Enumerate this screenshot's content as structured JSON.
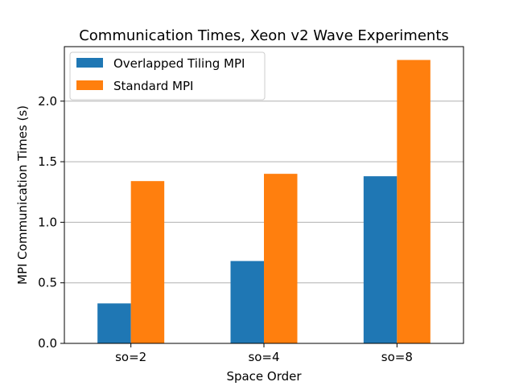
{
  "chart_data": {
    "type": "bar",
    "title": "Communication Times, Xeon v2 Wave Experiments",
    "xlabel": "Space Order",
    "ylabel": "MPI Communication Times (s)",
    "categories": [
      "so=2",
      "so=4",
      "so=8"
    ],
    "series": [
      {
        "name": "Overlapped Tiling MPI",
        "color": "#1f77b4",
        "values": [
          0.33,
          0.68,
          1.38
        ]
      },
      {
        "name": "Standard MPI",
        "color": "#ff7f0e",
        "values": [
          1.34,
          1.4,
          2.34
        ]
      }
    ],
    "ylim": [
      0,
      2.45
    ],
    "yticks": [
      0.0,
      0.5,
      1.0,
      1.5,
      2.0
    ],
    "ytick_labels": [
      "0.0",
      "0.5",
      "1.0",
      "1.5",
      "2.0"
    ],
    "grid": "y-major",
    "legend_position": "top-left"
  }
}
